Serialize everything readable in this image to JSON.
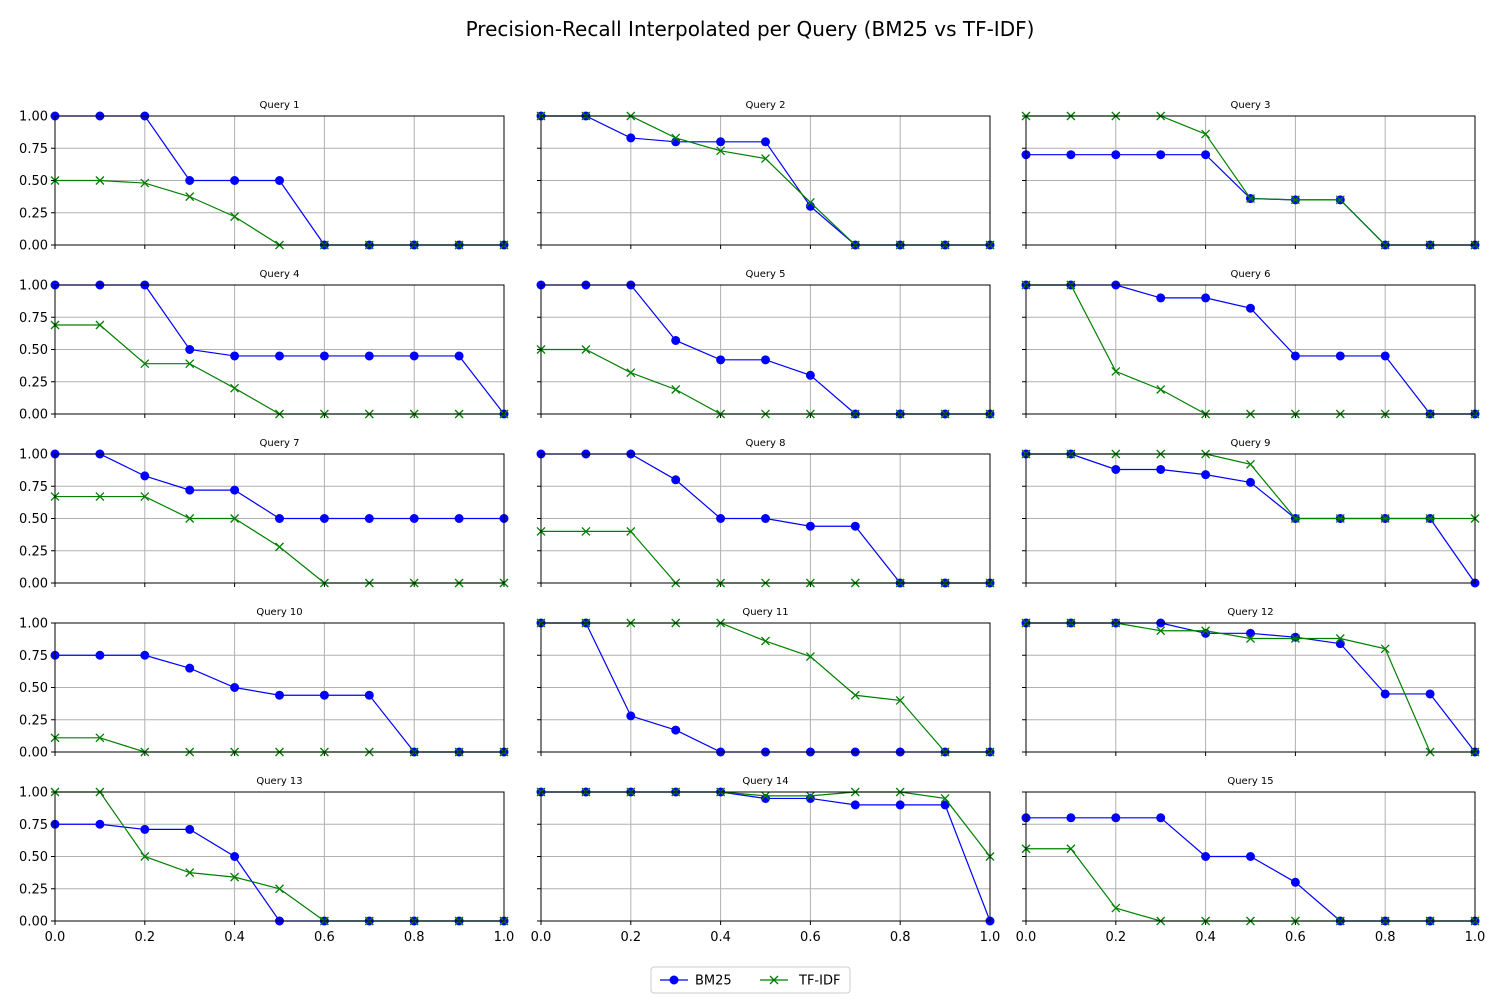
{
  "chart_data": {
    "type": "line",
    "title": "Precision-Recall Interpolated per Query (BM25 vs TF-IDF)",
    "x": [
      0.0,
      0.1,
      0.2,
      0.3,
      0.4,
      0.5,
      0.6,
      0.7,
      0.8,
      0.9,
      1.0
    ],
    "xlim": [
      0.0,
      1.0
    ],
    "ylim": [
      0.0,
      1.0
    ],
    "xticks": [
      "0.0",
      "0.2",
      "0.4",
      "0.6",
      "0.8",
      "1.0"
    ],
    "yticks": [
      "0.00",
      "0.25",
      "0.50",
      "0.75",
      "1.00"
    ],
    "grid": true,
    "legend": {
      "placement": "bottom-center",
      "entries": [
        {
          "name": "BM25",
          "color": "#0000ff",
          "marker": "circle"
        },
        {
          "name": "TF-IDF",
          "color": "#008000",
          "marker": "x"
        }
      ]
    },
    "panels": [
      {
        "title": "Query 1",
        "bm25": [
          1.0,
          1.0,
          1.0,
          0.5,
          0.5,
          0.5,
          0.0,
          0.0,
          0.0,
          0.0,
          0.0
        ],
        "tfidf": [
          0.5,
          0.5,
          0.48,
          0.375,
          0.22,
          0.0,
          0.0,
          0.0,
          0.0,
          0.0,
          0.0
        ]
      },
      {
        "title": "Query 2",
        "bm25": [
          1.0,
          1.0,
          0.83,
          0.8,
          0.8,
          0.8,
          0.3,
          0.0,
          0.0,
          0.0,
          0.0
        ],
        "tfidf": [
          1.0,
          1.0,
          1.0,
          0.83,
          0.73,
          0.67,
          0.33,
          0.0,
          0.0,
          0.0,
          0.0
        ]
      },
      {
        "title": "Query 3",
        "bm25": [
          0.7,
          0.7,
          0.7,
          0.7,
          0.7,
          0.36,
          0.35,
          0.35,
          0.0,
          0.0,
          0.0
        ],
        "tfidf": [
          1.0,
          1.0,
          1.0,
          1.0,
          0.86,
          0.36,
          0.35,
          0.35,
          0.0,
          0.0,
          0.0
        ]
      },
      {
        "title": "Query 4",
        "bm25": [
          1.0,
          1.0,
          1.0,
          0.5,
          0.45,
          0.45,
          0.45,
          0.45,
          0.45,
          0.45,
          0.0
        ],
        "tfidf": [
          0.69,
          0.69,
          0.39,
          0.39,
          0.2,
          0.0,
          0.0,
          0.0,
          0.0,
          0.0,
          0.0
        ]
      },
      {
        "title": "Query 5",
        "bm25": [
          1.0,
          1.0,
          1.0,
          0.57,
          0.42,
          0.42,
          0.3,
          0.0,
          0.0,
          0.0,
          0.0
        ],
        "tfidf": [
          0.5,
          0.5,
          0.32,
          0.19,
          0.0,
          0.0,
          0.0,
          0.0,
          0.0,
          0.0,
          0.0
        ]
      },
      {
        "title": "Query 6",
        "bm25": [
          1.0,
          1.0,
          1.0,
          0.9,
          0.9,
          0.82,
          0.45,
          0.45,
          0.45,
          0.0,
          0.0
        ],
        "tfidf": [
          1.0,
          1.0,
          0.33,
          0.19,
          0.0,
          0.0,
          0.0,
          0.0,
          0.0,
          0.0,
          0.0
        ]
      },
      {
        "title": "Query 7",
        "bm25": [
          1.0,
          1.0,
          0.83,
          0.72,
          0.72,
          0.5,
          0.5,
          0.5,
          0.5,
          0.5,
          0.5
        ],
        "tfidf": [
          0.67,
          0.67,
          0.67,
          0.5,
          0.5,
          0.28,
          0.0,
          0.0,
          0.0,
          0.0,
          0.0
        ]
      },
      {
        "title": "Query 8",
        "bm25": [
          1.0,
          1.0,
          1.0,
          0.8,
          0.5,
          0.5,
          0.44,
          0.44,
          0.0,
          0.0,
          0.0
        ],
        "tfidf": [
          0.4,
          0.4,
          0.4,
          0.0,
          0.0,
          0.0,
          0.0,
          0.0,
          0.0,
          0.0,
          0.0
        ]
      },
      {
        "title": "Query 9",
        "bm25": [
          1.0,
          1.0,
          0.88,
          0.88,
          0.84,
          0.78,
          0.5,
          0.5,
          0.5,
          0.5,
          0.0
        ],
        "tfidf": [
          1.0,
          1.0,
          1.0,
          1.0,
          1.0,
          0.92,
          0.5,
          0.5,
          0.5,
          0.5,
          0.5
        ]
      },
      {
        "title": "Query 10",
        "bm25": [
          0.75,
          0.75,
          0.75,
          0.65,
          0.5,
          0.44,
          0.44,
          0.44,
          0.0,
          0.0,
          0.0
        ],
        "tfidf": [
          0.11,
          0.11,
          0.0,
          0.0,
          0.0,
          0.0,
          0.0,
          0.0,
          0.0,
          0.0,
          0.0
        ]
      },
      {
        "title": "Query 11",
        "bm25": [
          1.0,
          1.0,
          0.28,
          0.17,
          0.0,
          0.0,
          0.0,
          0.0,
          0.0,
          0.0,
          0.0
        ],
        "tfidf": [
          1.0,
          1.0,
          1.0,
          1.0,
          1.0,
          0.86,
          0.74,
          0.44,
          0.4,
          0.0,
          0.0
        ]
      },
      {
        "title": "Query 12",
        "bm25": [
          1.0,
          1.0,
          1.0,
          1.0,
          0.92,
          0.92,
          0.89,
          0.84,
          0.45,
          0.45,
          0.0
        ],
        "tfidf": [
          1.0,
          1.0,
          1.0,
          0.94,
          0.94,
          0.88,
          0.88,
          0.88,
          0.8,
          0.0,
          0.0
        ]
      },
      {
        "title": "Query 13",
        "bm25": [
          0.75,
          0.75,
          0.71,
          0.71,
          0.5,
          0.0,
          0.0,
          0.0,
          0.0,
          0.0,
          0.0
        ],
        "tfidf": [
          1.0,
          1.0,
          0.5,
          0.375,
          0.34,
          0.25,
          0.0,
          0.0,
          0.0,
          0.0,
          0.0
        ]
      },
      {
        "title": "Query 14",
        "bm25": [
          1.0,
          1.0,
          1.0,
          1.0,
          1.0,
          0.95,
          0.95,
          0.9,
          0.9,
          0.9,
          0.0
        ],
        "tfidf": [
          1.0,
          1.0,
          1.0,
          1.0,
          1.0,
          0.97,
          0.97,
          1.0,
          1.0,
          0.95,
          0.5
        ]
      },
      {
        "title": "Query 15",
        "bm25": [
          0.8,
          0.8,
          0.8,
          0.8,
          0.5,
          0.5,
          0.3,
          0.0,
          0.0,
          0.0,
          0.0
        ],
        "tfidf": [
          0.56,
          0.56,
          0.1,
          0.0,
          0.0,
          0.0,
          0.0,
          0.0,
          0.0,
          0.0,
          0.0
        ]
      }
    ]
  }
}
